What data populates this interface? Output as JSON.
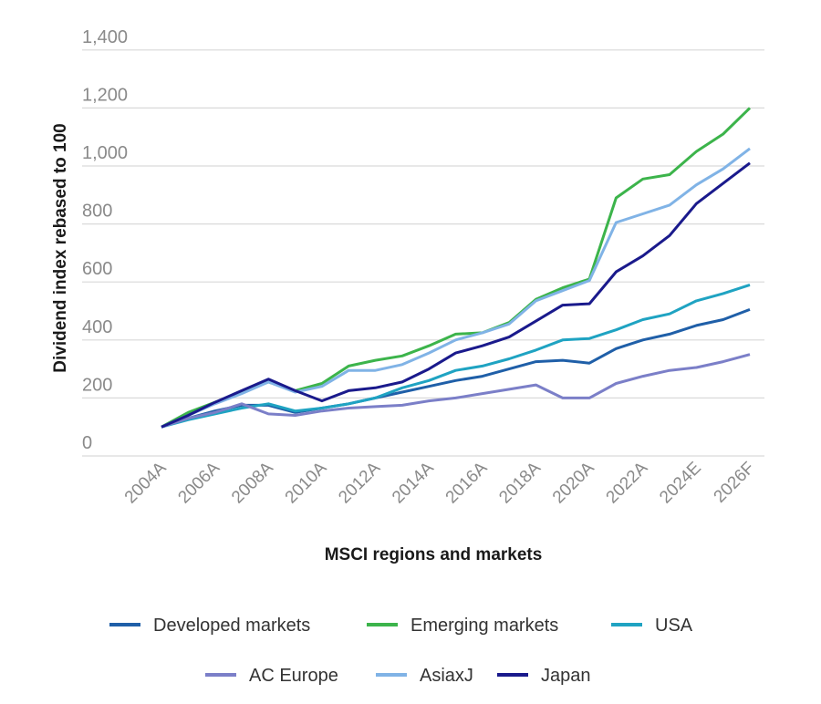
{
  "chart_data": {
    "type": "line",
    "title": "",
    "xlabel": "MSCI regions and markets",
    "ylabel": "Dividend index rebased to 100",
    "ylim": [
      0,
      1400
    ],
    "yticks": [
      0,
      200,
      400,
      600,
      800,
      1000,
      1200,
      1400
    ],
    "ytick_labels": [
      "0",
      "200",
      "400",
      "600",
      "800",
      "1,000",
      "1,200",
      "1,400"
    ],
    "x": [
      2004,
      2005,
      2006,
      2007,
      2008,
      2009,
      2010,
      2011,
      2012,
      2013,
      2014,
      2015,
      2016,
      2017,
      2018,
      2019,
      2020,
      2021,
      2022,
      2023,
      2024,
      2025,
      2026
    ],
    "xtick_labels": [
      "2004A",
      "2006A",
      "2008A",
      "2010A",
      "2012A",
      "2014A",
      "2016A",
      "2018A",
      "2020A",
      "2022A",
      "2024E",
      "2026F"
    ],
    "grid": true,
    "legend_position": "bottom",
    "series": [
      {
        "name": "Developed markets",
        "color": "#1f5fa8",
        "values": [
          100,
          130,
          155,
          175,
          175,
          150,
          165,
          180,
          200,
          220,
          240,
          260,
          275,
          300,
          325,
          330,
          320,
          370,
          400,
          420,
          450,
          470,
          505
        ]
      },
      {
        "name": "Emerging markets",
        "color": "#3cb44b",
        "values": [
          100,
          150,
          185,
          220,
          255,
          225,
          250,
          310,
          330,
          345,
          380,
          420,
          425,
          460,
          540,
          580,
          610,
          890,
          955,
          970,
          1050,
          1110,
          1200
        ]
      },
      {
        "name": "USA",
        "color": "#1fa3c2",
        "values": [
          100,
          125,
          145,
          165,
          180,
          155,
          165,
          180,
          200,
          235,
          260,
          295,
          310,
          335,
          365,
          400,
          405,
          435,
          470,
          490,
          535,
          560,
          590
        ]
      },
      {
        "name": "AC Europe",
        "color": "#7b7fc8",
        "values": [
          100,
          130,
          150,
          180,
          145,
          140,
          155,
          165,
          170,
          175,
          190,
          200,
          215,
          230,
          245,
          200,
          200,
          250,
          275,
          295,
          305,
          325,
          350
        ]
      },
      {
        "name": "AsiaxJ",
        "color": "#80b3e6",
        "values": [
          100,
          140,
          180,
          215,
          255,
          220,
          240,
          295,
          295,
          315,
          355,
          400,
          425,
          455,
          535,
          570,
          605,
          805,
          835,
          865,
          935,
          990,
          1060
        ]
      },
      {
        "name": "Japan",
        "color": "#1a1a8c",
        "values": [
          100,
          140,
          185,
          225,
          265,
          225,
          190,
          225,
          235,
          255,
          300,
          355,
          380,
          410,
          465,
          520,
          525,
          635,
          690,
          760,
          870,
          940,
          1010
        ]
      }
    ]
  }
}
